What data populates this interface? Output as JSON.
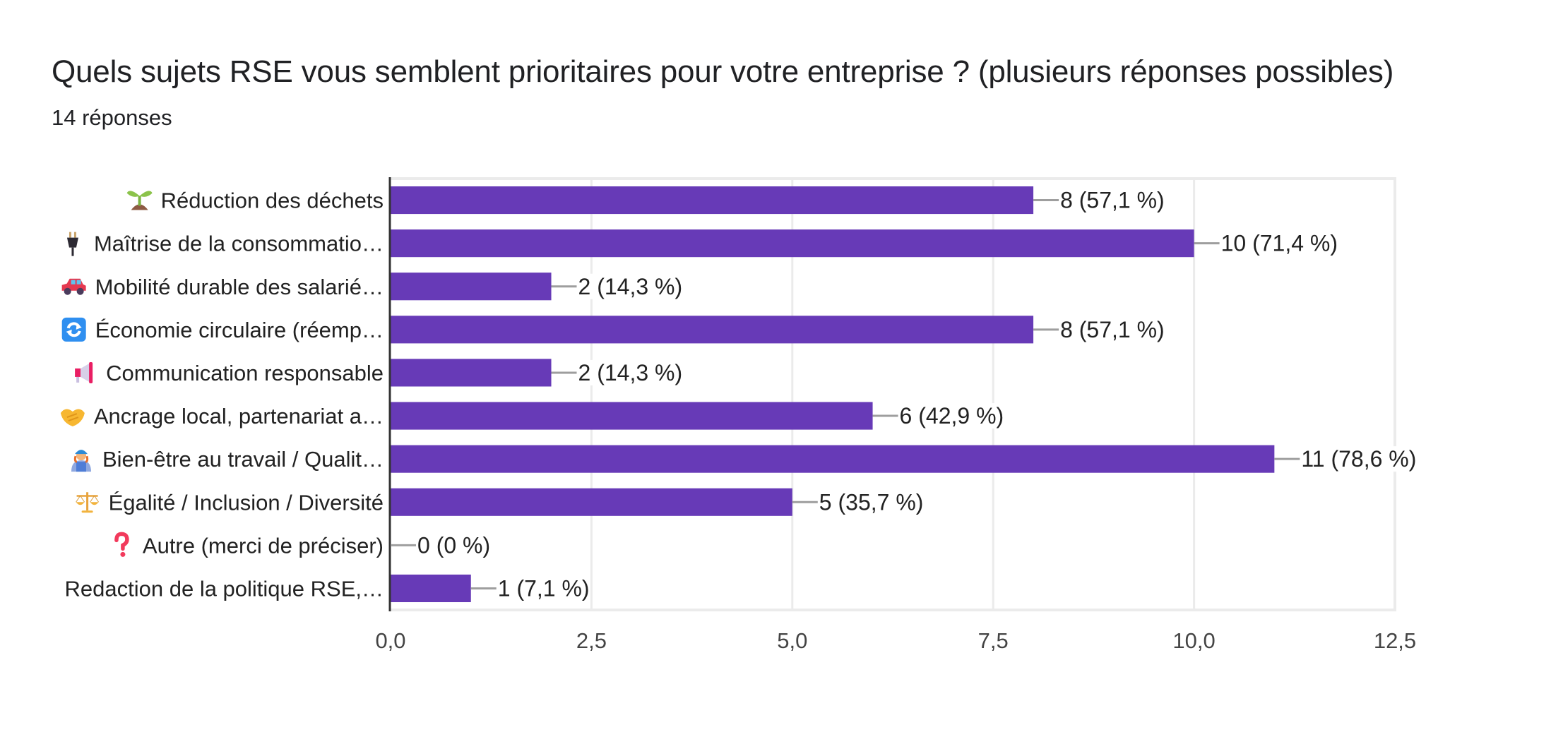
{
  "header": {
    "title": "Quels sujets RSE vous semblent prioritaires pour votre entreprise ? (plusieurs réponses possibles)",
    "subtitle": "14 réponses"
  },
  "colors": {
    "bar": "#673ab7",
    "axis": "#333333",
    "grid": "#ebebeb",
    "connector": "#9e9e9e",
    "text": "#222222",
    "tick_text": "#444444"
  },
  "chart_data": {
    "type": "bar",
    "orientation": "horizontal",
    "title": "Quels sujets RSE vous semblent prioritaires pour votre entreprise ? (plusieurs réponses possibles)",
    "subtitle": "14 réponses",
    "xlabel": "",
    "ylabel": "",
    "xlim": [
      0,
      12.5
    ],
    "grid": true,
    "legend": "none",
    "xticks": [
      0,
      2.5,
      5,
      7.5,
      10,
      12.5
    ],
    "xtick_labels": [
      "0,0",
      "2,5",
      "5,0",
      "7,5",
      "10,0",
      "12,5"
    ],
    "categories": [
      {
        "icon": "seedling-icon",
        "label": "Réduction des déchets"
      },
      {
        "icon": "electric-plug-icon",
        "label": "Maîtrise de la consommatio…"
      },
      {
        "icon": "car-icon",
        "label": "Mobilité durable des salarié…"
      },
      {
        "icon": "recycle-arrows-icon",
        "label": "Économie circulaire (réemp…"
      },
      {
        "icon": "megaphone-icon",
        "label": "Communication responsable"
      },
      {
        "icon": "handshake-icon",
        "label": "Ancrage local, partenariat a…"
      },
      {
        "icon": "woman-mechanic-icon",
        "label": "Bien-être au travail / Qualit…"
      },
      {
        "icon": "balance-scale-icon",
        "label": "Égalité / Inclusion / Diversité"
      },
      {
        "icon": "question-mark-icon",
        "label": "Autre (merci de préciser)"
      },
      {
        "icon": "",
        "label": "Redaction de la politique RSE,…"
      }
    ],
    "values": [
      8,
      10,
      2,
      8,
      2,
      6,
      11,
      5,
      0,
      1
    ],
    "value_labels": [
      "8 (57,1 %)",
      "10 (71,4 %)",
      "2 (14,3 %)",
      "8 (57,1 %)",
      "2 (14,3 %)",
      "6 (42,9 %)",
      "11 (78,6 %)",
      "5 (35,7 %)",
      "0 (0 %)",
      "1 (7,1 %)"
    ],
    "percentages": [
      57.1,
      71.4,
      14.3,
      57.1,
      14.3,
      42.9,
      78.6,
      35.7,
      0,
      7.1
    ]
  }
}
